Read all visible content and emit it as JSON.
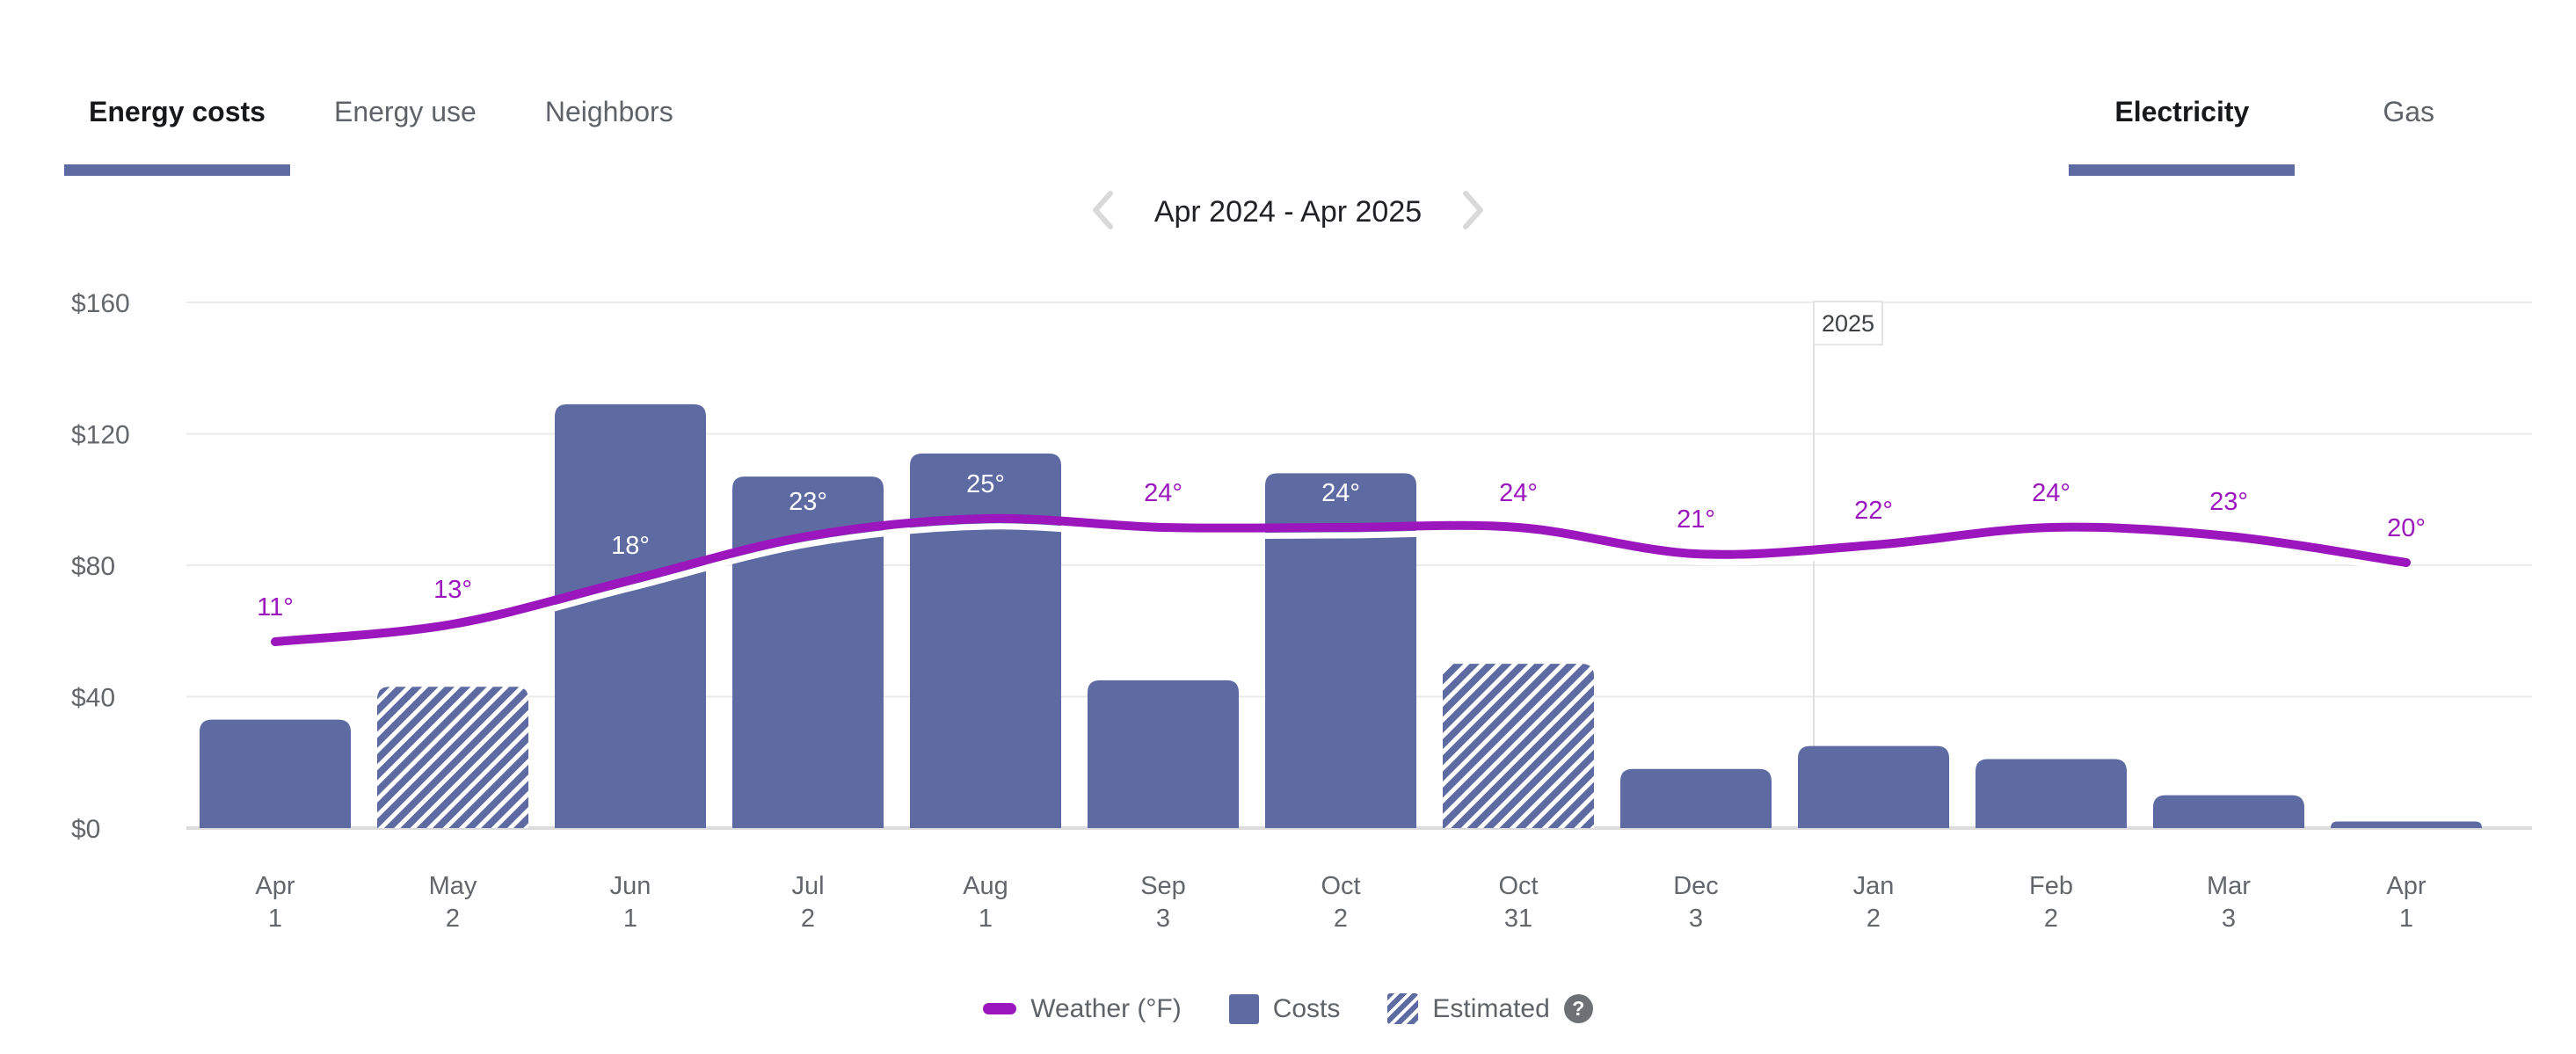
{
  "tabs_left": [
    {
      "label": "Energy costs",
      "active": true
    },
    {
      "label": "Energy use",
      "active": false
    },
    {
      "label": "Neighbors",
      "active": false
    }
  ],
  "tabs_right": [
    {
      "label": "Electricity",
      "active": true
    },
    {
      "label": "Gas",
      "active": false
    }
  ],
  "date_nav": {
    "label": "Apr 2024 - Apr 2025",
    "prev_icon": "chevron-left",
    "next_icon": "chevron-right"
  },
  "chart_data": {
    "type": "bar+line",
    "title": "Energy costs - Electricity - Apr 2024 to Apr 2025",
    "categories": [
      {
        "month": "Apr",
        "day": "1"
      },
      {
        "month": "May",
        "day": "2"
      },
      {
        "month": "Jun",
        "day": "1"
      },
      {
        "month": "Jul",
        "day": "2"
      },
      {
        "month": "Aug",
        "day": "1"
      },
      {
        "month": "Sep",
        "day": "3"
      },
      {
        "month": "Oct",
        "day": "2"
      },
      {
        "month": "Oct",
        "day": "31"
      },
      {
        "month": "Dec",
        "day": "3"
      },
      {
        "month": "Jan",
        "day": "2"
      },
      {
        "month": "Feb",
        "day": "2"
      },
      {
        "month": "Mar",
        "day": "3"
      },
      {
        "month": "Apr",
        "day": "1"
      }
    ],
    "series": [
      {
        "name": "Costs",
        "type": "bar",
        "unit": "$",
        "values": [
          33,
          43,
          129,
          107,
          114,
          45,
          108,
          50,
          18,
          25,
          21,
          10,
          2
        ],
        "estimated": [
          false,
          true,
          false,
          false,
          false,
          false,
          false,
          true,
          false,
          false,
          false,
          false,
          false
        ]
      },
      {
        "name": "Weather (°F)",
        "type": "line",
        "unit": "°",
        "values": [
          11,
          13,
          18,
          23,
          25,
          24,
          24,
          24,
          21,
          22,
          24,
          23,
          20
        ],
        "labels": [
          "11°",
          "13°",
          "18°",
          "23°",
          "25°",
          "24°",
          "24°",
          "24°",
          "21°",
          "22°",
          "24°",
          "23°",
          "20°"
        ]
      }
    ],
    "y_axis": {
      "tick_labels": [
        "$0",
        "$40",
        "$80",
        "$120",
        "$160"
      ],
      "tick_values": [
        0,
        40,
        80,
        120,
        160
      ],
      "ylim": [
        0,
        160
      ]
    },
    "year_marker": {
      "label": "2025",
      "after_index": 8
    },
    "grid": true,
    "legend_position": "bottom",
    "colors": {
      "bar": "#5d6ba2",
      "line": "#9b16bd",
      "grid": "#ebebeb",
      "axis_text": "#63666a"
    }
  },
  "legend": [
    {
      "label": "Weather (°F)",
      "swatch": "line-swatch"
    },
    {
      "label": "Costs",
      "swatch": "bar-swatch"
    },
    {
      "label": "Estimated",
      "swatch": "hatch-swatch",
      "help_icon": "?"
    }
  ]
}
